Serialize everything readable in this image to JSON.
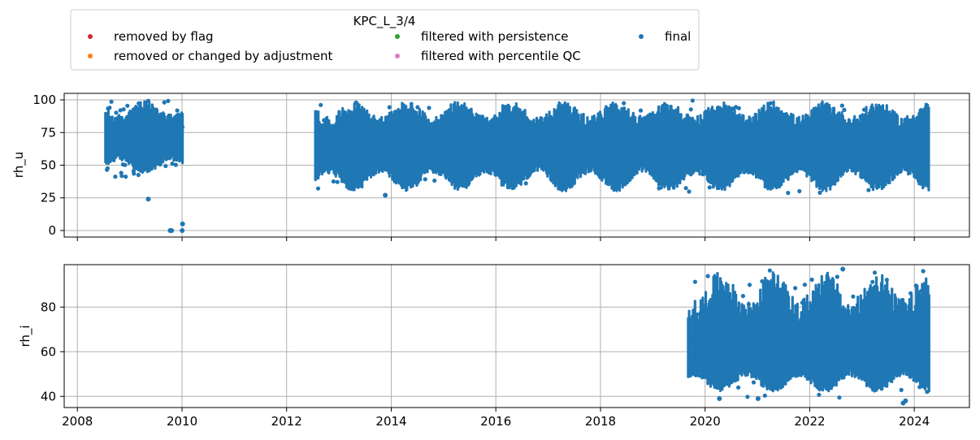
{
  "chart_data": {
    "type": "scatter",
    "legend": {
      "title": "KPC_L_3/4",
      "placement": "top",
      "entries": [
        {
          "label": "removed by flag",
          "color": "#d62728"
        },
        {
          "label": "removed or changed by adjustment",
          "color": "#ff7f0e"
        },
        {
          "label": "filtered with persistence",
          "color": "#2ca02c"
        },
        {
          "label": "filtered with percentile QC",
          "color": "#e377c2"
        },
        {
          "label": "final",
          "color": "#1f77b4"
        }
      ]
    },
    "x_axis": {
      "range": [
        "2007-10-01",
        "2025-01-20"
      ],
      "ticks": [
        "2008",
        "2010",
        "2012",
        "2014",
        "2016",
        "2018",
        "2020",
        "2022",
        "2024"
      ],
      "grid": true
    },
    "panels": [
      {
        "ylabel": "rh_u",
        "ylim": [
          -5,
          105
        ],
        "yticks": [
          "0",
          "25",
          "50",
          "75",
          "100"
        ],
        "grid": true,
        "series": [
          {
            "label": "final",
            "color": "#1f77b4",
            "bands": [
              {
                "start": "2008-07-15",
                "end": "2010-01-05",
                "low_min": 44,
                "low_max": 58,
                "high_min": 80,
                "high_max": 99
              },
              {
                "start": "2012-07-20",
                "end": "2024-04-15",
                "low_min": 30,
                "low_max": 50,
                "high_min": 78,
                "high_max": 99
              }
            ],
            "outliers": [
              {
                "date": "2009-10-10",
                "value": 0
              },
              {
                "date": "2009-10-20",
                "value": 0
              },
              {
                "date": "2010-01-02",
                "value": 0
              },
              {
                "date": "2010-01-05",
                "value": 5
              },
              {
                "date": "2009-05-10",
                "value": 24
              },
              {
                "date": "2013-11-20",
                "value": 27
              }
            ]
          }
        ]
      },
      {
        "ylabel": "rh_i",
        "ylim": [
          35,
          99
        ],
        "yticks": [
          "40",
          "60",
          "80"
        ],
        "grid": true,
        "series": [
          {
            "label": "final",
            "color": "#1f77b4",
            "bands": [
              {
                "start": "2019-09-05",
                "end": "2024-04-15",
                "low_min": 42,
                "low_max": 52,
                "high_min": 72,
                "high_max": 96
              }
            ],
            "outliers": [
              {
                "date": "2023-10-15",
                "value": 37
              },
              {
                "date": "2023-11-01",
                "value": 38
              },
              {
                "date": "2020-04-10",
                "value": 39
              },
              {
                "date": "2021-01-05",
                "value": 39
              },
              {
                "date": "2022-08-20",
                "value": 97
              }
            ]
          }
        ]
      }
    ]
  }
}
